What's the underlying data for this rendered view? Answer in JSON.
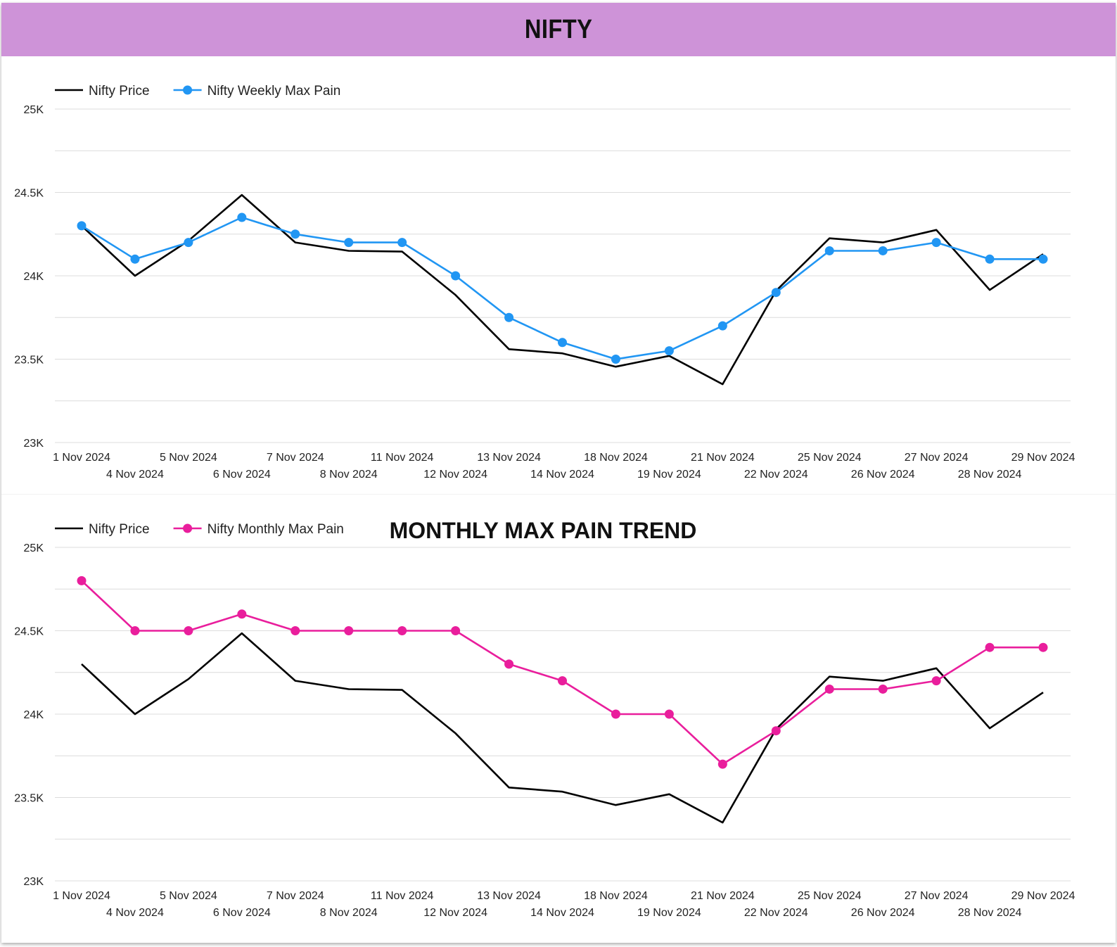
{
  "header": {
    "title": "NIFTY"
  },
  "chart_data": [
    {
      "type": "line",
      "title": "",
      "x": [
        "1 Nov 2024",
        "4 Nov 2024",
        "5 Nov 2024",
        "6 Nov 2024",
        "7 Nov 2024",
        "8 Nov 2024",
        "11 Nov 2024",
        "12 Nov 2024",
        "13 Nov 2024",
        "14 Nov 2024",
        "18 Nov 2024",
        "19 Nov 2024",
        "21 Nov 2024",
        "22 Nov 2024",
        "25 Nov 2024",
        "26 Nov 2024",
        "27 Nov 2024",
        "28 Nov 2024",
        "29 Nov 2024"
      ],
      "series": [
        {
          "name": "Nifty Price",
          "color": "#000000",
          "markers": false,
          "values": [
            24300,
            24000,
            24210,
            24485,
            24200,
            24150,
            24145,
            23885,
            23560,
            23535,
            23455,
            23520,
            23350,
            23910,
            24225,
            24200,
            24275,
            23915,
            24130
          ]
        },
        {
          "name": "Nifty Weekly Max Pain",
          "color": "#2196f3",
          "markers": true,
          "values": [
            24300,
            24100,
            24200,
            24350,
            24250,
            24200,
            24200,
            24000,
            23750,
            23600,
            23500,
            23550,
            23700,
            23900,
            24150,
            24150,
            24200,
            24100,
            24100
          ]
        }
      ],
      "ylim": [
        23000,
        25000
      ],
      "yticks": [
        23000,
        23500,
        24000,
        24500,
        25000
      ],
      "ytick_labels": [
        "23K",
        "23.5K",
        "24K",
        "24.5K",
        "25K"
      ],
      "grid": true,
      "legend": "top-left"
    },
    {
      "type": "line",
      "title": "MONTHLY MAX PAIN TREND",
      "x": [
        "1 Nov 2024",
        "4 Nov 2024",
        "5 Nov 2024",
        "6 Nov 2024",
        "7 Nov 2024",
        "8 Nov 2024",
        "11 Nov 2024",
        "12 Nov 2024",
        "13 Nov 2024",
        "14 Nov 2024",
        "18 Nov 2024",
        "19 Nov 2024",
        "21 Nov 2024",
        "22 Nov 2024",
        "25 Nov 2024",
        "26 Nov 2024",
        "27 Nov 2024",
        "28 Nov 2024",
        "29 Nov 2024"
      ],
      "series": [
        {
          "name": "Nifty Price",
          "color": "#000000",
          "markers": false,
          "values": [
            24300,
            24000,
            24210,
            24485,
            24200,
            24150,
            24145,
            23885,
            23560,
            23535,
            23455,
            23520,
            23350,
            23910,
            24225,
            24200,
            24275,
            23915,
            24130
          ]
        },
        {
          "name": "Nifty Monthly Max Pain",
          "color": "#e91e9c",
          "markers": true,
          "values": [
            24800,
            24500,
            24500,
            24600,
            24500,
            24500,
            24500,
            24500,
            24300,
            24200,
            24000,
            24000,
            23700,
            23900,
            24150,
            24150,
            24200,
            24400,
            24400
          ]
        }
      ],
      "ylim": [
        23000,
        25000
      ],
      "yticks": [
        23000,
        23500,
        24000,
        24500,
        25000
      ],
      "ytick_labels": [
        "23K",
        "23.5K",
        "24K",
        "24.5K",
        "25K"
      ],
      "grid": true,
      "legend": "top-left"
    }
  ]
}
